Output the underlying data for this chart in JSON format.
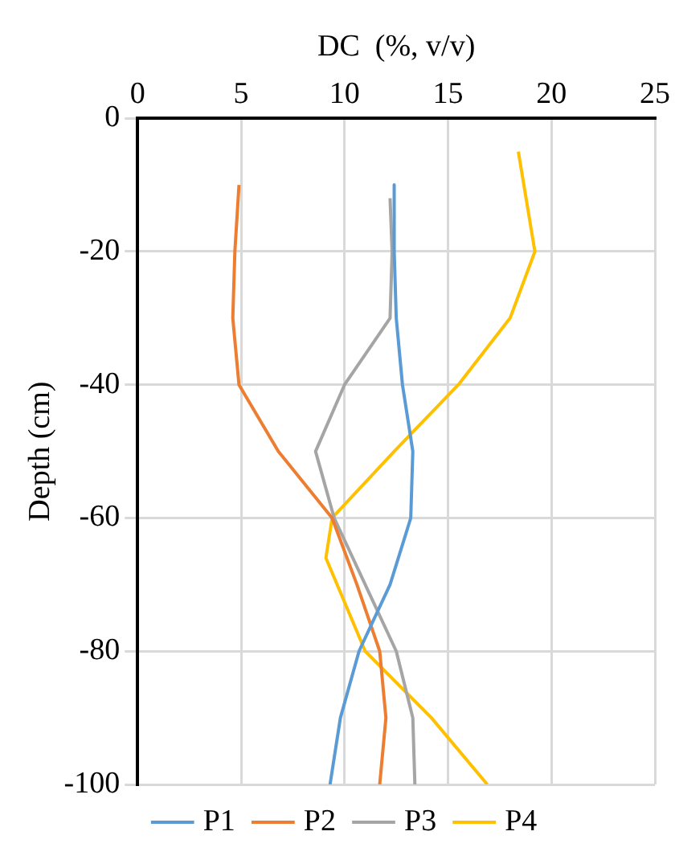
{
  "chart_data": {
    "type": "line",
    "xlabel": "DC  (%, v/v)",
    "ylabel": "Depth (cm)",
    "xlim": [
      0,
      25
    ],
    "xticks": [
      0,
      5,
      10,
      15,
      20,
      25
    ],
    "ylim": [
      -100,
      0
    ],
    "yticks": [
      -100,
      -80,
      -60,
      -40,
      -20,
      0
    ],
    "grid": true,
    "legend": "bottom",
    "marker": "none",
    "line_style": "solid",
    "series": [
      {
        "name": "P1",
        "color": "#5b9bd5",
        "x": [
          12.4,
          12.4,
          12.5,
          12.8,
          13.3,
          13.2,
          12.2,
          10.7,
          9.8,
          9.3
        ],
        "values": [
          -10,
          -20,
          -30,
          -40,
          -50,
          -60,
          -70,
          -80,
          -90,
          -100
        ]
      },
      {
        "name": "P2",
        "color": "#ed7d31",
        "x": [
          4.9,
          4.7,
          4.6,
          4.9,
          6.8,
          9.4,
          10.6,
          11.7,
          12.0,
          11.7
        ],
        "values": [
          -10,
          -20,
          -30,
          -40,
          -50,
          -60,
          -70,
          -80,
          -90,
          -100
        ]
      },
      {
        "name": "P3",
        "color": "#a5a5a5",
        "x": [
          12.2,
          12.3,
          12.2,
          10.0,
          8.6,
          9.5,
          11.0,
          12.5,
          13.3,
          13.4
        ],
        "values": [
          -12,
          -20,
          -30,
          -40,
          -50,
          -60,
          -70,
          -80,
          -90,
          -100
        ]
      },
      {
        "name": "P4",
        "color": "#ffc000",
        "x": [
          18.4,
          19.2,
          18.0,
          15.5,
          12.4,
          9.4,
          9.1,
          11.0,
          14.2,
          16.9
        ],
        "values": [
          -5,
          -20,
          -30,
          -40,
          -50,
          -60,
          -66,
          -80,
          -90,
          -100
        ]
      }
    ]
  }
}
